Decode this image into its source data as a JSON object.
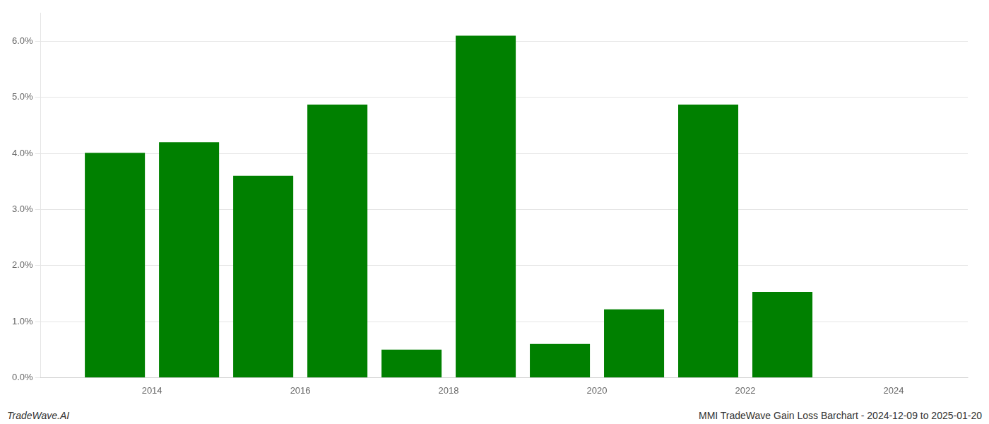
{
  "chart_data": {
    "type": "bar",
    "x": [
      2013.5,
      2014.5,
      2015.5,
      2016.5,
      2017.5,
      2018.5,
      2019.5,
      2020.5,
      2021.5,
      2022.5,
      2023.5
    ],
    "values": [
      0.0401,
      0.042,
      0.036,
      0.0487,
      0.005,
      0.061,
      0.006,
      0.0122,
      0.0487,
      0.0153,
      0.0
    ],
    "color": "#008000",
    "xlim": [
      2012.5,
      2025.0
    ],
    "xticks": [
      2014,
      2016,
      2018,
      2020,
      2022,
      2024
    ],
    "ylim": [
      0.0,
      0.065
    ],
    "yticks": [
      {
        "value": 0.0,
        "label": "0.0%"
      },
      {
        "value": 0.01,
        "label": "1.0%"
      },
      {
        "value": 0.02,
        "label": "2.0%"
      },
      {
        "value": 0.03,
        "label": "3.0%"
      },
      {
        "value": 0.04,
        "label": "4.0%"
      },
      {
        "value": 0.05,
        "label": "5.0%"
      },
      {
        "value": 0.06,
        "label": "6.0%"
      }
    ],
    "grid": "y",
    "annotations": [
      "TradeWave.AI",
      "MMI TradeWave Gain Loss Barchart - 2024-12-09 to 2025-01-20"
    ]
  }
}
